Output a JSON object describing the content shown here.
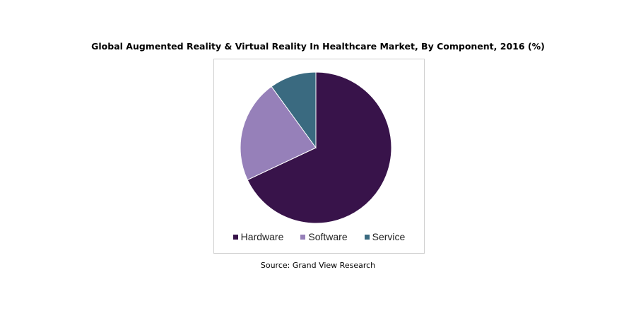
{
  "chart_data": {
    "type": "pie",
    "title": "Global Augmented Reality & Virtual Reality In Healthcare Market, By Component, 2016 (%)",
    "categories": [
      "Hardware",
      "Software",
      "Service"
    ],
    "values": [
      68,
      22,
      10
    ],
    "colors": [
      "#38134a",
      "#9680b9",
      "#3a6a80"
    ],
    "legend_placement": "bottom",
    "source": "Source: Grand View Research"
  }
}
